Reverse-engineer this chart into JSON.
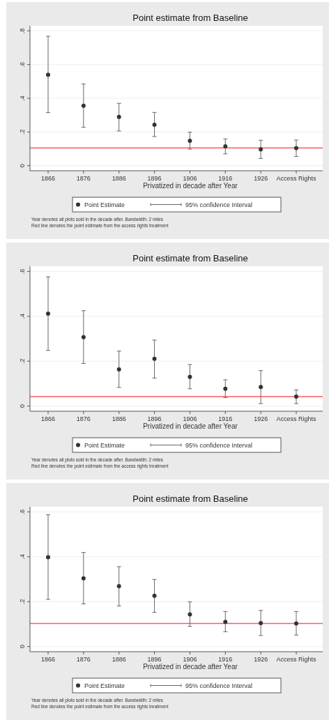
{
  "chart_data": [
    {
      "type": "scatter",
      "title": "Point estimate from Baseline",
      "xlabel": "Privatized in decade after Year",
      "categories": [
        "1866",
        "1876",
        "1886",
        "1896",
        "1906",
        "1916",
        "1926",
        "Access Rights"
      ],
      "series": [
        {
          "name": "Point Estimate",
          "color": "#333333",
          "values": [
            0.54,
            0.356,
            0.289,
            0.243,
            0.148,
            0.115,
            0.097,
            0.104
          ],
          "errors": [
            [
              0.315,
              0.768
            ],
            [
              0.228,
              0.485
            ],
            [
              0.206,
              0.37
            ],
            [
              0.173,
              0.316
            ],
            [
              0.098,
              0.199
            ],
            [
              0.07,
              0.159
            ],
            [
              0.043,
              0.151
            ],
            [
              0.055,
              0.152
            ]
          ]
        }
      ],
      "ylim": [
        -0.03,
        0.83
      ],
      "yticks": [
        {
          "value": 0,
          "label": "0"
        },
        {
          "value": 0.2,
          "label": ".2"
        },
        {
          "value": 0.4,
          "label": ".4"
        },
        {
          "value": 0.6,
          "label": ".6"
        },
        {
          "value": 0.8,
          "label": ".8"
        }
      ],
      "grid": "y",
      "marker": "circle",
      "legend": "bottom",
      "ref_lines": [
        {
          "axis": "y",
          "value": 0.105,
          "color": "#ff5a5a"
        }
      ],
      "annotations": [
        "95% confidence Interval",
        "Year denotes all plots sold in the decade after. Bandwidth: 2 miles",
        "Red line denotes the point estimate from the access rights treatment"
      ]
    },
    {
      "type": "scatter",
      "title": "Point estimate from Baseline",
      "xlabel": "Privatized in decade after Year",
      "categories": [
        "1866",
        "1876",
        "1886",
        "1896",
        "1906",
        "1916",
        "1926",
        "Access Rights"
      ],
      "series": [
        {
          "name": "Point Estimate",
          "color": "#333333",
          "values": [
            0.412,
            0.307,
            0.163,
            0.211,
            0.13,
            0.077,
            0.085,
            0.042
          ],
          "errors": [
            [
              0.248,
              0.576
            ],
            [
              0.19,
              0.425
            ],
            [
              0.083,
              0.245
            ],
            [
              0.125,
              0.294
            ],
            [
              0.077,
              0.185
            ],
            [
              0.038,
              0.117
            ],
            [
              0.011,
              0.158
            ],
            [
              0.011,
              0.072
            ]
          ]
        }
      ],
      "ylim": [
        -0.023,
        0.623
      ],
      "yticks": [
        {
          "value": 0,
          "label": "0"
        },
        {
          "value": 0.2,
          "label": ".2"
        },
        {
          "value": 0.4,
          "label": ".4"
        },
        {
          "value": 0.6,
          "label": ".6"
        }
      ],
      "grid": "y",
      "marker": "circle",
      "legend": "bottom",
      "ref_lines": [
        {
          "axis": "y",
          "value": 0.042,
          "color": "#ff5a5a"
        }
      ],
      "annotations": [
        "95% confidence Interval",
        "Year denotes all plots sold in the decade after. Bandwidth: 2 miles",
        "Red line denotes the point estimate from the access rights treatment"
      ]
    },
    {
      "type": "scatter",
      "title": "Point estimate from Baseline",
      "xlabel": "Privatized in decade after Year",
      "categories": [
        "1866",
        "1876",
        "1886",
        "1896",
        "1906",
        "1916",
        "1926",
        "Access Rights"
      ],
      "series": [
        {
          "name": "Point Estimate",
          "color": "#333333",
          "values": [
            0.398,
            0.304,
            0.269,
            0.226,
            0.143,
            0.11,
            0.104,
            0.103
          ],
          "errors": [
            [
              0.21,
              0.587
            ],
            [
              0.19,
              0.419
            ],
            [
              0.181,
              0.356
            ],
            [
              0.152,
              0.299
            ],
            [
              0.09,
              0.199
            ],
            [
              0.066,
              0.156
            ],
            [
              0.049,
              0.161
            ],
            [
              0.051,
              0.156
            ]
          ]
        }
      ],
      "ylim": [
        -0.023,
        0.623
      ],
      "yticks": [
        {
          "value": 0,
          "label": "0"
        },
        {
          "value": 0.2,
          "label": ".2"
        },
        {
          "value": 0.4,
          "label": ".4"
        },
        {
          "value": 0.6,
          "label": ".6"
        }
      ],
      "grid": "y",
      "marker": "circle",
      "legend": "bottom",
      "ref_lines": [
        {
          "axis": "y",
          "value": 0.103,
          "color": "#ff5a5a"
        }
      ],
      "annotations": [
        "95% confidence Interval",
        "Year denotes all plots sold in the decade after. Bandwidth: 2 miles",
        "Red line denotes the point estimate from the access rights treatment"
      ]
    }
  ]
}
